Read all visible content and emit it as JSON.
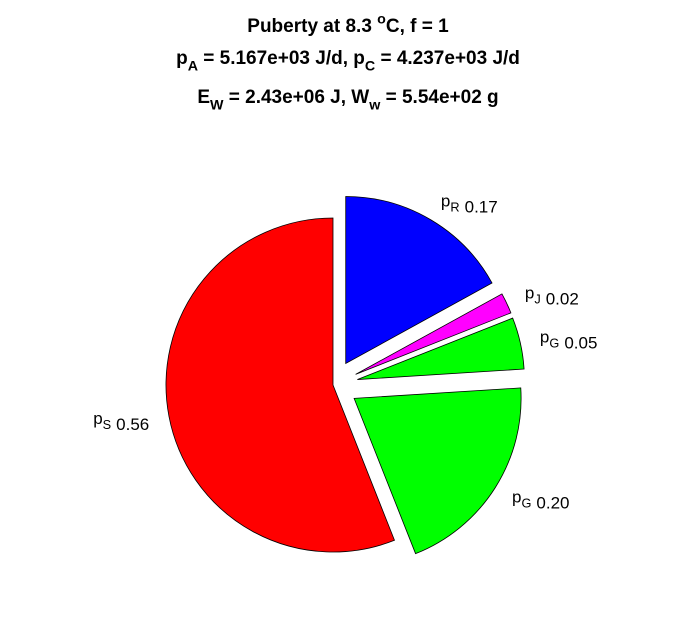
{
  "chart_data": {
    "type": "pie",
    "title": [
      [
        "Puberty at 8.3 ",
        {
          "sup": "o"
        },
        "C, f = 1"
      ],
      [
        "p",
        {
          "sub": "A"
        },
        " = 5.167e+03 J/d,  p",
        {
          "sub": "C"
        },
        " = 4.237e+03 J/d"
      ],
      [
        "E",
        {
          "sub": "W"
        },
        " = 2.43e+06 J, W",
        {
          "sub": "w"
        },
        " = 5.54e+02 g"
      ]
    ],
    "categories": [
      [
        "p",
        {
          "sub": "R"
        }
      ],
      [
        "p",
        {
          "sub": "J"
        }
      ],
      [
        "p",
        {
          "sub": "G"
        }
      ],
      [
        "p",
        {
          "sub": "G"
        }
      ],
      [
        "p",
        {
          "sub": "S"
        }
      ]
    ],
    "values": [
      0.17,
      0.02,
      0.05,
      0.2,
      0.56
    ],
    "value_labels": [
      "0.17",
      "0.02",
      "0.05",
      "0.20",
      "0.56"
    ],
    "colors": [
      "#0000ff",
      "#ff00ff",
      "#00ff00",
      "#00ff00",
      "#ff0000"
    ],
    "explode": [
      true,
      true,
      true,
      true,
      false
    ]
  }
}
